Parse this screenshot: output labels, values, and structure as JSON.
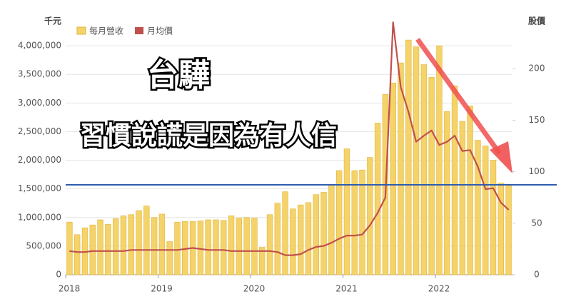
{
  "chart_data": {
    "type": "bar-line",
    "title": "台驊",
    "subtitle": "習慣說謊是因為有人信",
    "y_label": "千元",
    "y2_label": "股價",
    "categories": [
      "2018",
      null,
      null,
      null,
      null,
      null,
      null,
      null,
      null,
      null,
      null,
      null,
      "2019",
      null,
      null,
      null,
      null,
      null,
      null,
      null,
      null,
      null,
      null,
      null,
      "2020",
      null,
      null,
      null,
      null,
      null,
      null,
      null,
      null,
      null,
      null,
      null,
      "2021",
      null,
      null,
      null,
      null,
      null,
      null,
      null,
      null,
      null,
      null,
      null,
      "2022",
      null,
      null,
      null,
      null,
      null,
      null,
      null,
      null,
      null
    ],
    "series": [
      {
        "name": "每月營收",
        "color": "#f4d36a",
        "kind": "bar",
        "values": [
          920000,
          700000,
          820000,
          870000,
          960000,
          880000,
          980000,
          1030000,
          1050000,
          1120000,
          1200000,
          1000000,
          1060000,
          580000,
          920000,
          930000,
          930000,
          940000,
          960000,
          960000,
          950000,
          1030000,
          990000,
          1000000,
          990000,
          480000,
          1050000,
          1250000,
          1450000,
          1150000,
          1220000,
          1260000,
          1400000,
          1440000,
          1580000,
          1820000,
          2200000,
          1820000,
          1830000,
          2050000,
          2650000,
          3150000,
          3350000,
          3700000,
          4100000,
          3980000,
          3670000,
          3450000,
          4000000,
          2850000,
          3300000,
          2680000,
          2950000,
          2350000,
          2250000,
          2000000,
          1600000,
          1560000
        ]
      },
      {
        "name": "月均價",
        "color": "#c0504d",
        "kind": "line",
        "axis": "y2",
        "values": [
          23,
          22,
          22,
          23,
          23,
          23,
          23,
          23,
          24,
          24,
          24,
          24,
          24,
          24,
          24,
          25,
          26,
          25,
          24,
          24,
          24,
          23,
          23,
          23,
          23,
          23,
          23,
          22,
          19,
          19,
          20,
          24,
          27,
          28,
          31,
          35,
          38,
          38,
          39,
          48,
          60,
          75,
          245,
          182,
          158,
          129,
          135,
          140,
          126,
          129,
          135,
          120,
          121,
          105,
          83,
          84,
          70,
          63
        ]
      }
    ],
    "ylim": [
      0,
      4500000
    ],
    "yticks": [
      0,
      {
        "value": 500000,
        "label": "500,000"
      },
      {
        "value": 1000000,
        "label": "1,000,000"
      },
      {
        "value": 1500000,
        "label": "1,500,000"
      },
      {
        "value": 2000000,
        "label": "2,000,000"
      },
      {
        "value": 2500000,
        "label": "2,500,000"
      },
      {
        "value": 3000000,
        "label": "3,000,000"
      },
      {
        "value": 3500000,
        "label": "3,500,000"
      },
      {
        "value": 4000000,
        "label": "4,000,000"
      }
    ],
    "y2lim": [
      0,
      250
    ],
    "y2ticks": [
      0,
      50,
      100,
      150,
      200
    ],
    "reference_line": {
      "value": 1570000,
      "color": "#2f5cb0"
    }
  }
}
